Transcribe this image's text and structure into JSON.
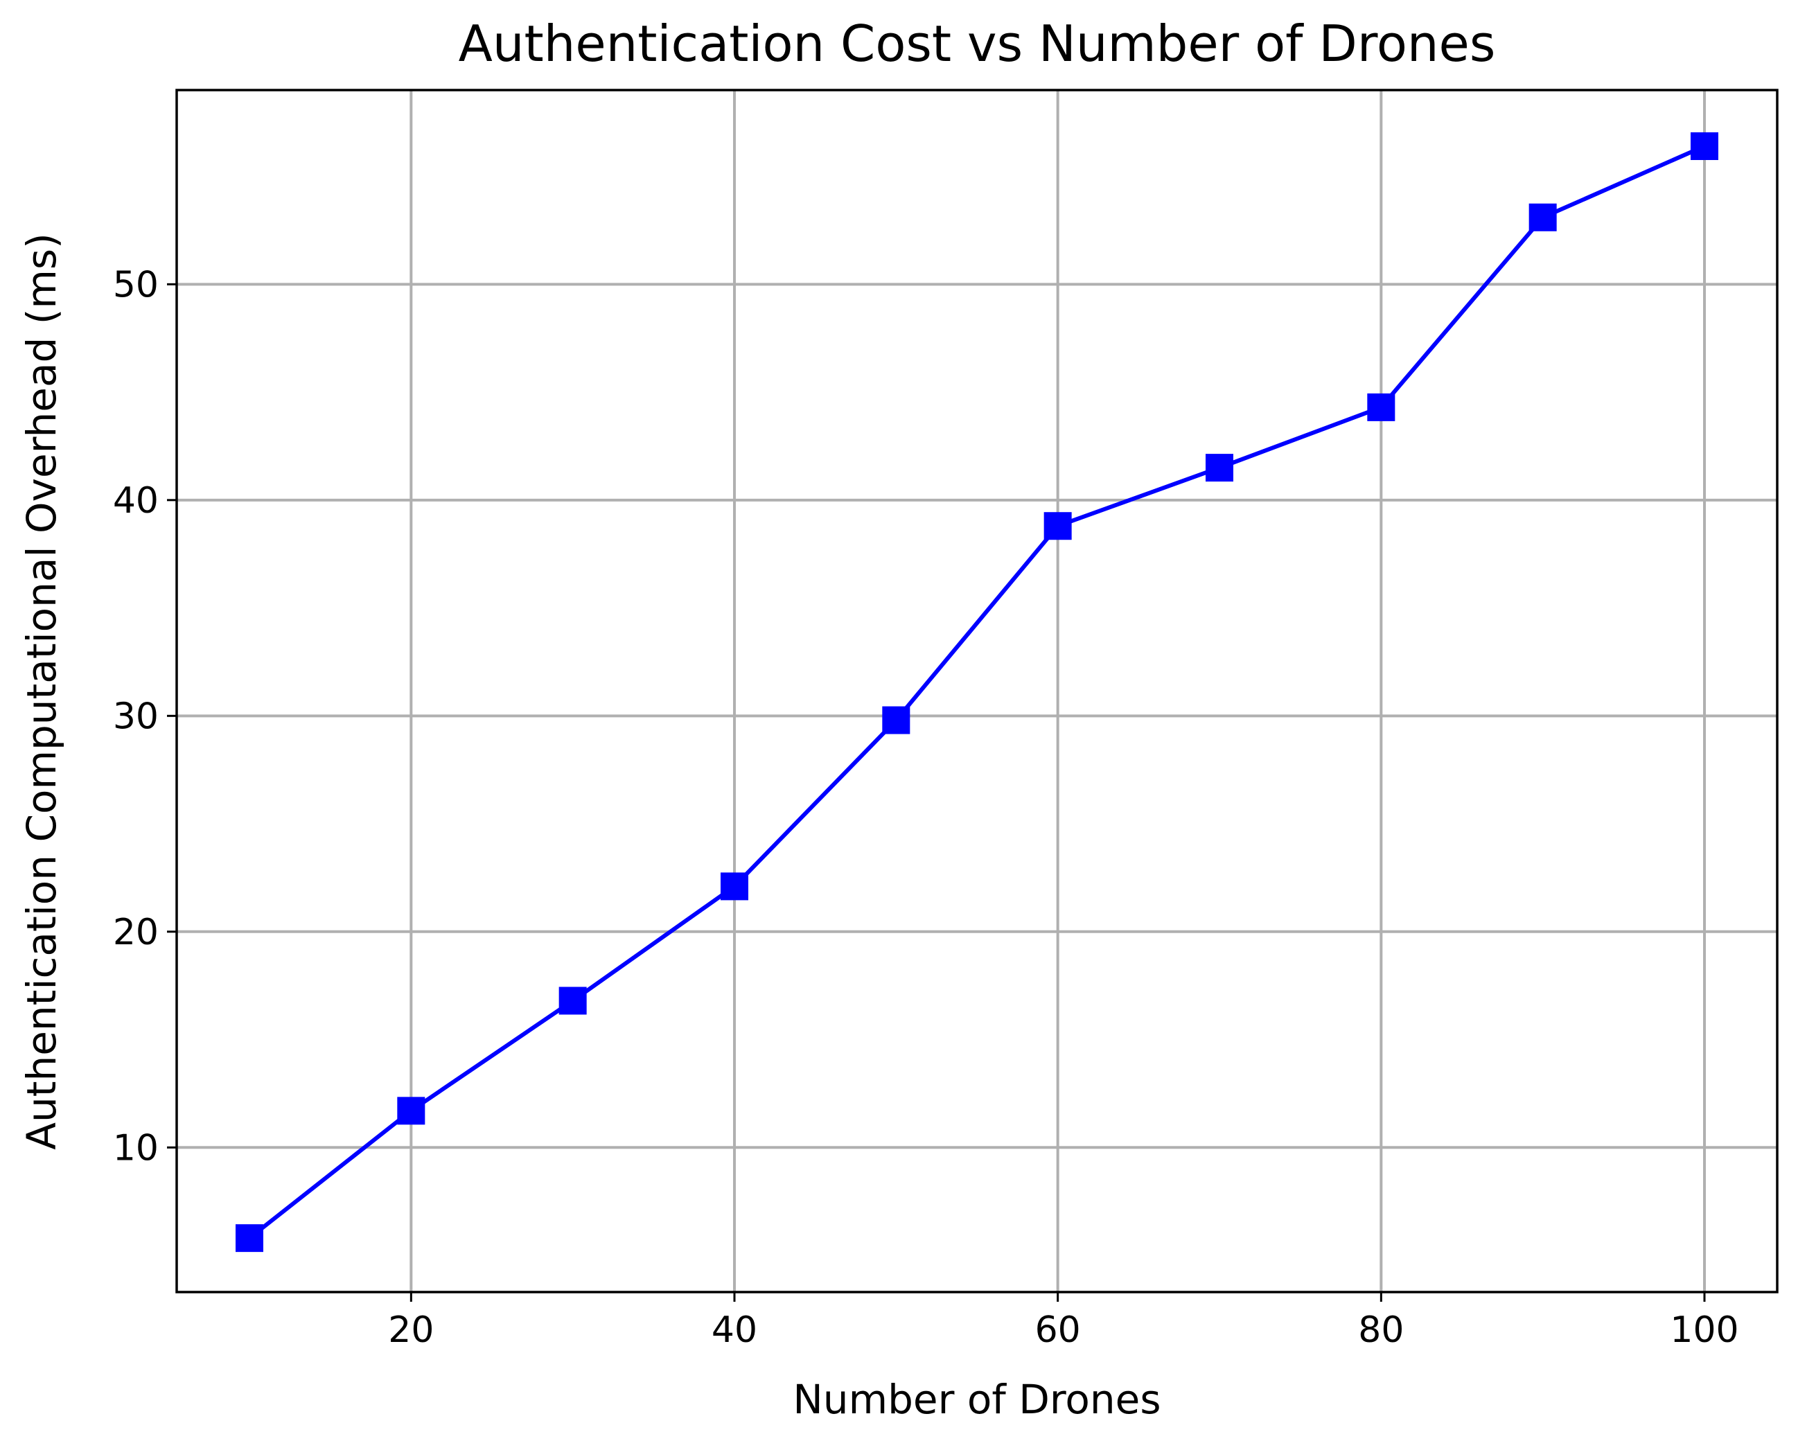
{
  "chart_data": {
    "type": "line",
    "title": "Authentication Cost vs Number of Drones",
    "xlabel": "Number of Drones",
    "ylabel": "Authentication Computational Overhead (ms)",
    "x": [
      10,
      20,
      30,
      40,
      50,
      60,
      70,
      80,
      90,
      100
    ],
    "xlim": [
      5.5,
      104.5
    ],
    "ylim": [
      3.3,
      59.0
    ],
    "xticks": [
      20,
      40,
      60,
      80,
      100
    ],
    "yticks": [
      10,
      20,
      30,
      40,
      50
    ],
    "grid": true,
    "series": [
      {
        "color": "#0000ff",
        "marker": "square",
        "values": [
          5.8,
          11.7,
          16.8,
          22.1,
          29.8,
          38.8,
          41.5,
          44.3,
          53.1,
          56.4
        ]
      }
    ]
  }
}
